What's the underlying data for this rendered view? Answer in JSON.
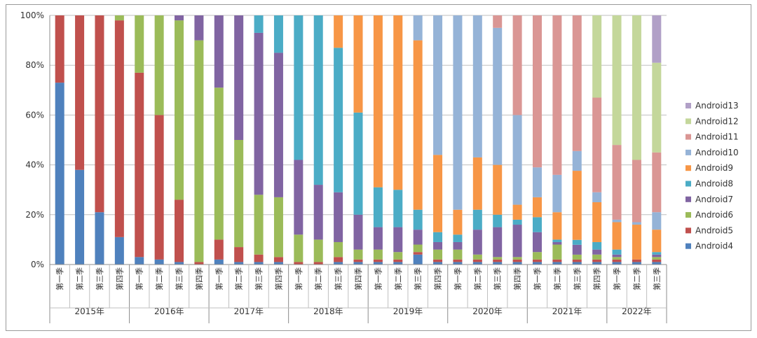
{
  "chart_data": {
    "type": "bar",
    "stacked": "percent",
    "ylim": [
      0,
      100
    ],
    "yticks": [
      "0%",
      "20%",
      "40%",
      "60%",
      "80%",
      "100%"
    ],
    "years": [
      {
        "label": "2015年",
        "quarters": [
          "第一季",
          "第二季",
          "第三季",
          "第四季"
        ]
      },
      {
        "label": "2016年",
        "quarters": [
          "第一季",
          "第二季",
          "第三季",
          "第四季"
        ]
      },
      {
        "label": "2017年",
        "quarters": [
          "第一季",
          "第二季",
          "第三季",
          "第四季"
        ]
      },
      {
        "label": "2018年",
        "quarters": [
          "第一季",
          "第二季",
          "第三季",
          "第四季"
        ]
      },
      {
        "label": "2019年",
        "quarters": [
          "第一季",
          "第二季",
          "第三季",
          "第四季"
        ]
      },
      {
        "label": "2020年",
        "quarters": [
          "第一季",
          "第二季",
          "第三季",
          "第四季"
        ]
      },
      {
        "label": "2021年",
        "quarters": [
          "第一季",
          "第二季",
          "第三季",
          "第四季"
        ]
      },
      {
        "label": "2022年",
        "quarters": [
          "第一季",
          "第二季",
          "第三季"
        ]
      }
    ],
    "series_names": [
      "Android4",
      "Android5",
      "Android6",
      "Android7",
      "Android8",
      "Android9",
      "Android10",
      "Android11",
      "Android12",
      "Android13"
    ],
    "colors": [
      "#4f81bd",
      "#c0504d",
      "#9bbb59",
      "#8064a2",
      "#4bacc6",
      "#f79646",
      "#95b3d7",
      "#da9694",
      "#c4d79b",
      "#b1a0c7"
    ],
    "values": [
      [
        73,
        27,
        0,
        0,
        0,
        0,
        0,
        0,
        0,
        0
      ],
      [
        38,
        62,
        0,
        0,
        0,
        0,
        0,
        0,
        0,
        0
      ],
      [
        21,
        79,
        0,
        0,
        0,
        0,
        0,
        0,
        0,
        0
      ],
      [
        11,
        87,
        2,
        0,
        0,
        0,
        0,
        0,
        0,
        0
      ],
      [
        3,
        74,
        23,
        0,
        0,
        0,
        0,
        0,
        0,
        0
      ],
      [
        2,
        58,
        40,
        0,
        0,
        0,
        0,
        0,
        0,
        0
      ],
      [
        1,
        25,
        72,
        2,
        0,
        0,
        0,
        0,
        0,
        0
      ],
      [
        0,
        1,
        89,
        10,
        0,
        0,
        0,
        0,
        0,
        0
      ],
      [
        2,
        8,
        61,
        29,
        0,
        0,
        0,
        0,
        0,
        0
      ],
      [
        1,
        6,
        43,
        50,
        0,
        0,
        0,
        0,
        0,
        0
      ],
      [
        1,
        3,
        24,
        65,
        7,
        0,
        0,
        0,
        0,
        0
      ],
      [
        1,
        2,
        24,
        58,
        15,
        0,
        0,
        0,
        0,
        0
      ],
      [
        0,
        1,
        11,
        30,
        58,
        0,
        0,
        0,
        0,
        0
      ],
      [
        0,
        1,
        9,
        22,
        68,
        0,
        0,
        0,
        0,
        0
      ],
      [
        1,
        2,
        6,
        20,
        58,
        13,
        0,
        0,
        0,
        0
      ],
      [
        1,
        1,
        4,
        14,
        41,
        39,
        0,
        0,
        0,
        0
      ],
      [
        1,
        1,
        4,
        9,
        16,
        69,
        0,
        0,
        0,
        0
      ],
      [
        1,
        1,
        3,
        10,
        15,
        70,
        0,
        0,
        0,
        0
      ],
      [
        4,
        1,
        3,
        6,
        8,
        68,
        10,
        0,
        0,
        0
      ],
      [
        1,
        1,
        4,
        3,
        4,
        31,
        56,
        0,
        0,
        0
      ],
      [
        1,
        1,
        4,
        3,
        3,
        10,
        78,
        0,
        0,
        0
      ],
      [
        1,
        1,
        2,
        10,
        8,
        21,
        57,
        0,
        0,
        0
      ],
      [
        1,
        1,
        1,
        12,
        5,
        20,
        55,
        5,
        0,
        0
      ],
      [
        1,
        1,
        1,
        13,
        2,
        6,
        36,
        40,
        0,
        0
      ],
      [
        1,
        1,
        3,
        8,
        6,
        8,
        12,
        61,
        0,
        0
      ],
      [
        1,
        1,
        6,
        1,
        1,
        11,
        15,
        64,
        0,
        0
      ],
      [
        1,
        1,
        2,
        4,
        2,
        28,
        8,
        55,
        0,
        0
      ],
      [
        1,
        1,
        2,
        2,
        3,
        16,
        4,
        38,
        33,
        0
      ],
      [
        1,
        1,
        1,
        1,
        2,
        11,
        1,
        30,
        52,
        0
      ],
      [
        1,
        1,
        0,
        0,
        0,
        14,
        1,
        25,
        58,
        0
      ],
      [
        1,
        1,
        1,
        1,
        1,
        9,
        7,
        24,
        36,
        19
      ]
    ]
  }
}
